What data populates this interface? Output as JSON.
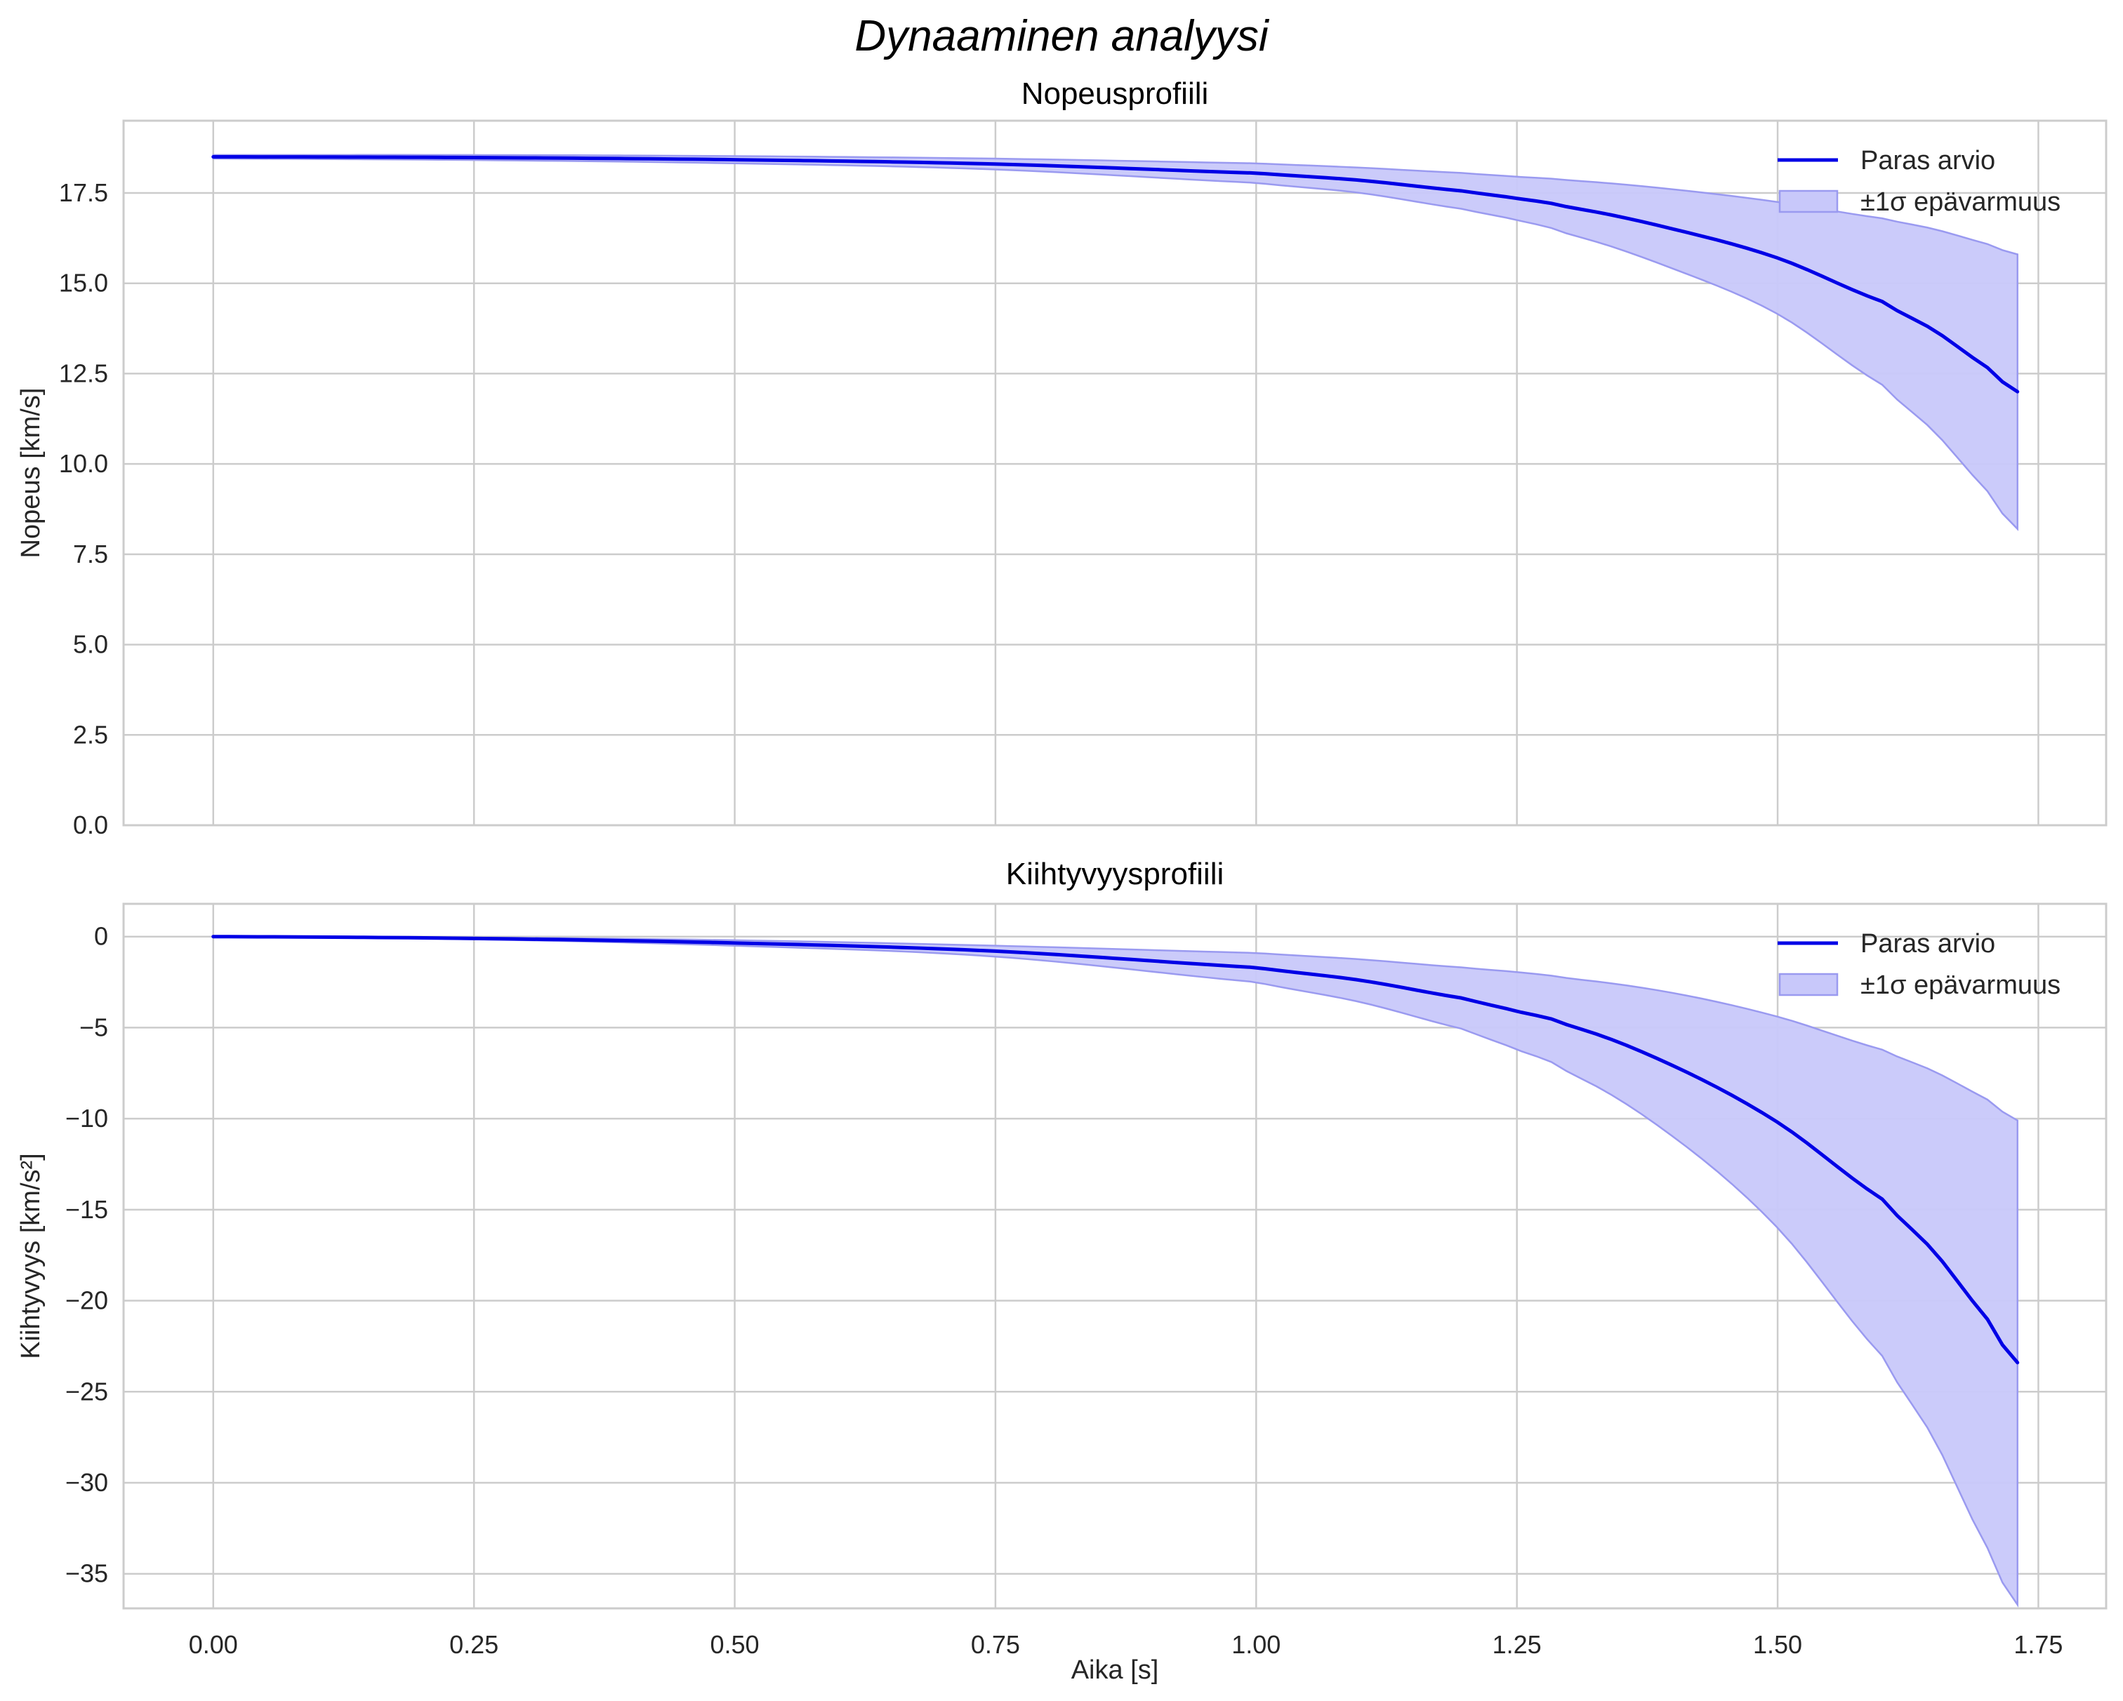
{
  "figure": {
    "suptitle": "Dynaaminen analyysi",
    "xlabel": "Aika [s]"
  },
  "legend": {
    "line_label": "Paras arvio",
    "band_label": "±1σ epävarmuus"
  },
  "colors": {
    "line": "#0000e6",
    "band_fill": "#c8c8fa",
    "band_edge": "#9a9af0",
    "grid": "#cccccc",
    "spine": "#cccccc",
    "text": "#262626"
  },
  "chart_data": [
    {
      "type": "line",
      "title": "Nopeusprofiili",
      "xlabel": "",
      "ylabel": "Nopeus [km/s]",
      "xlim": [
        -0.086,
        1.815
      ],
      "ylim": [
        0,
        19.5
      ],
      "xticks": [
        "0.00",
        "0.25",
        "0.50",
        "0.75",
        "1.00",
        "1.25",
        "1.50",
        "1.75"
      ],
      "yticks": [
        "0.0",
        "2.5",
        "5.0",
        "7.5",
        "10.0",
        "12.5",
        "15.0",
        "17.5"
      ],
      "grid": true,
      "legend_position": "upper right",
      "x": [
        0.0,
        0.25,
        0.5,
        0.75,
        1.0,
        1.1,
        1.2,
        1.25,
        1.3,
        1.4,
        1.5,
        1.6,
        1.65,
        1.7,
        1.73
      ],
      "series": [
        {
          "name": "Paras arvio",
          "values": [
            18.5,
            18.48,
            18.42,
            18.3,
            18.05,
            17.85,
            17.55,
            17.35,
            17.1,
            16.5,
            15.7,
            14.5,
            13.7,
            12.7,
            12.0
          ]
        },
        {
          "name": "±1σ epävarmuus (upper)",
          "values": [
            18.55,
            18.55,
            18.52,
            18.45,
            18.32,
            18.2,
            18.05,
            17.95,
            17.85,
            17.6,
            17.25,
            16.8,
            16.5,
            16.1,
            15.8
          ]
        },
        {
          "name": "±1σ epävarmuus (lower)",
          "values": [
            18.45,
            18.41,
            18.32,
            18.15,
            17.78,
            17.5,
            17.05,
            16.75,
            16.35,
            15.4,
            14.15,
            12.2,
            10.9,
            9.3,
            8.2
          ]
        }
      ]
    },
    {
      "type": "line",
      "title": "Kiihtyvyysprofiili",
      "xlabel": "Aika [s]",
      "ylabel": "Kiihtyvyys [km/s²]",
      "xlim": [
        -0.086,
        1.815
      ],
      "ylim": [
        -36.9,
        1.8
      ],
      "xticks": [
        "0.00",
        "0.25",
        "0.50",
        "0.75",
        "1.00",
        "1.25",
        "1.50",
        "1.75"
      ],
      "yticks": [
        "0",
        "−5",
        "−10",
        "−15",
        "−20",
        "−25",
        "−30",
        "−35"
      ],
      "grid": true,
      "legend_position": "upper right",
      "x": [
        0.0,
        0.25,
        0.5,
        0.75,
        1.0,
        1.1,
        1.2,
        1.25,
        1.3,
        1.4,
        1.5,
        1.6,
        1.65,
        1.7,
        1.73
      ],
      "series": [
        {
          "name": "Paras arvio",
          "values": [
            0.0,
            -0.1,
            -0.35,
            -0.8,
            -1.7,
            -2.4,
            -3.4,
            -4.1,
            -4.9,
            -7.1,
            -10.2,
            -14.4,
            -17.3,
            -20.9,
            -23.4
          ]
        },
        {
          "name": "±1σ epävarmuus (upper)",
          "values": [
            0.0,
            -0.05,
            -0.2,
            -0.5,
            -0.9,
            -1.25,
            -1.7,
            -1.95,
            -2.3,
            -3.1,
            -4.4,
            -6.2,
            -7.4,
            -8.9,
            -10.1
          ]
        },
        {
          "name": "±1σ epävarmuus (lower)",
          "values": [
            0.0,
            -0.15,
            -0.5,
            -1.1,
            -2.5,
            -3.6,
            -5.1,
            -6.2,
            -7.5,
            -11.0,
            -16.0,
            -23.0,
            -27.6,
            -33.4,
            -36.7
          ]
        }
      ]
    }
  ]
}
